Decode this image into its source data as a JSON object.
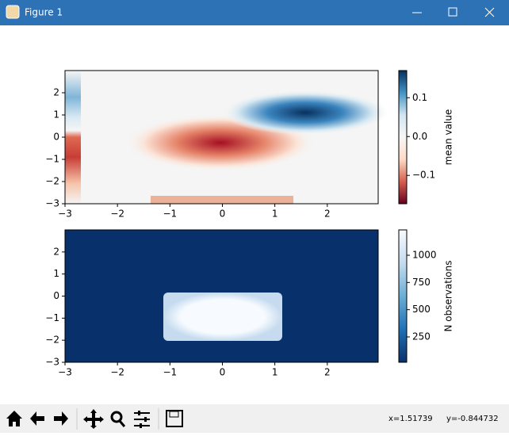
{
  "window": {
    "title": "Figure 1"
  },
  "status": {
    "x": "x=1.51739",
    "y": "y=-0.844732"
  },
  "chart_data": [
    {
      "type": "hexbin",
      "xlim": [
        -3,
        2.97
      ],
      "ylim": [
        -3,
        3
      ],
      "xticks": [
        {
          "value": -3,
          "label": "−3"
        },
        {
          "value": -2,
          "label": "−2"
        },
        {
          "value": -1,
          "label": "−1"
        },
        0,
        1,
        2
      ],
      "yticks": [
        {
          "value": -3,
          "label": "−3"
        },
        {
          "value": -2,
          "label": "−2"
        },
        {
          "value": -1,
          "label": "−1"
        },
        0,
        1,
        2
      ],
      "colorbar": {
        "label": "mean value",
        "lim": [
          -0.173,
          0.17
        ],
        "ticks": [
          {
            "value": -0.1,
            "label": "−0.1"
          },
          {
            "value": 0,
            "label": "0.0"
          },
          0.1
        ],
        "colors": [
          "#67001f",
          "#d6604d",
          "#fddbc7",
          "#f7f7f7",
          "#d1e5f0",
          "#4393c3",
          "#053061"
        ]
      }
    },
    {
      "type": "hexbin",
      "xlim": [
        -3,
        2.97
      ],
      "ylim": [
        -3,
        3
      ],
      "xticks": [
        {
          "value": -3,
          "label": "−3"
        },
        {
          "value": -2,
          "label": "−2"
        },
        {
          "value": -1,
          "label": "−1"
        },
        0,
        1,
        2
      ],
      "yticks": [
        {
          "value": -3,
          "label": "−3"
        },
        {
          "value": -2,
          "label": "−2"
        },
        {
          "value": -1,
          "label": "−1"
        },
        0,
        1,
        2
      ],
      "colorbar": {
        "label": "N observations",
        "lim": [
          17,
          1233
        ],
        "ticks": [
          250,
          500,
          750,
          1000
        ],
        "colors": [
          "#08306b",
          "#2171b5",
          "#6baed6",
          "#c6dbef",
          "#f7fbff"
        ]
      }
    }
  ]
}
